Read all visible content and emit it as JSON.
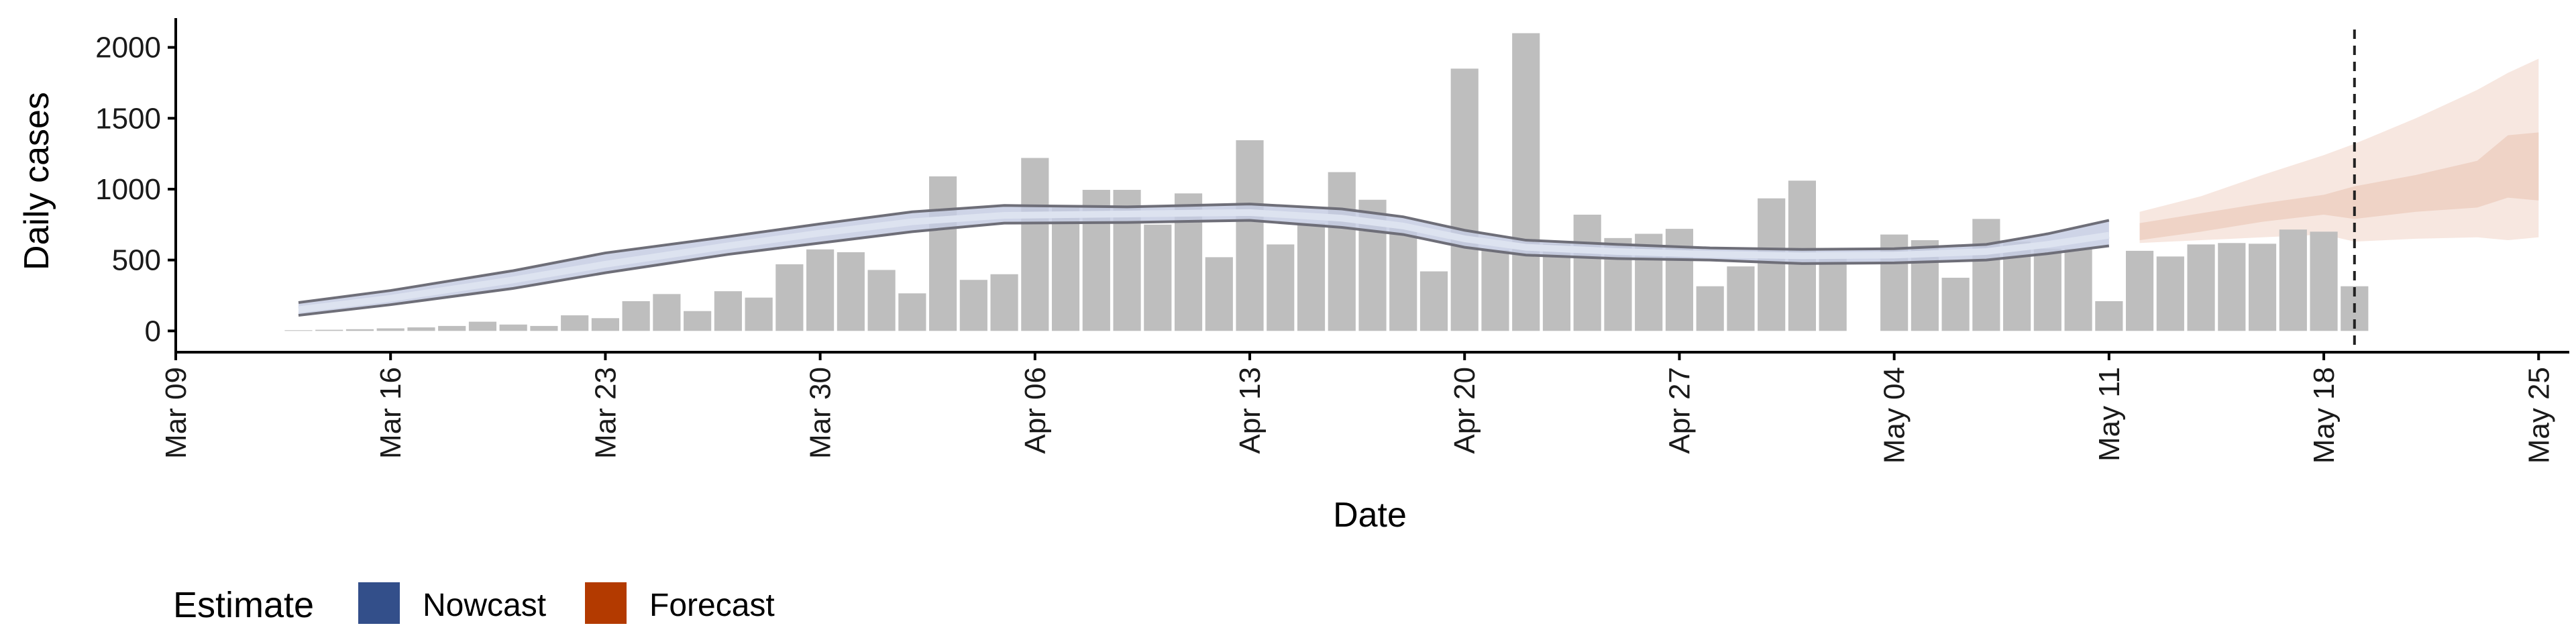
{
  "chart_data": {
    "type": "bar",
    "xlabel": "Date",
    "ylabel": "Daily cases",
    "ylim": [
      -150,
      2230
    ],
    "yticks": [
      0,
      500,
      1000,
      1500,
      2000
    ],
    "xlim": [
      "2020-03-09",
      "2020-05-26"
    ],
    "xticks": [
      "2020-03-09",
      "2020-03-16",
      "2020-03-23",
      "2020-03-30",
      "2020-04-06",
      "2020-04-13",
      "2020-04-20",
      "2020-04-27",
      "2020-05-04",
      "2020-05-11",
      "2020-05-18",
      "2020-05-25"
    ],
    "xtick_labels": [
      "Mar 09",
      "Mar 16",
      "Mar 23",
      "Mar 30",
      "Apr 06",
      "Apr 13",
      "Apr 20",
      "Apr 27",
      "May 04",
      "May 11",
      "May 18",
      "May 25"
    ],
    "forecast_date": "2020-05-19",
    "colors": {
      "bars": "#bebebe",
      "nowcast": "#334f8a",
      "nowcast_band": "#c5cde3",
      "nowcast_band_inner": "#dde3f0",
      "nowcast_outline": "#6e6e78",
      "forecast": "#b33a00",
      "forecast_outer": "#f7e7e0",
      "forecast_inner": "#efd3c6",
      "axis": "#000000",
      "vline": "#222222"
    },
    "series": [
      {
        "name": "Daily cases",
        "kind": "bar",
        "x": [
          "2020-03-13",
          "2020-03-14",
          "2020-03-15",
          "2020-03-16",
          "2020-03-17",
          "2020-03-18",
          "2020-03-19",
          "2020-03-20",
          "2020-03-21",
          "2020-03-22",
          "2020-03-23",
          "2020-03-24",
          "2020-03-25",
          "2020-03-26",
          "2020-03-27",
          "2020-03-28",
          "2020-03-29",
          "2020-03-30",
          "2020-03-31",
          "2020-04-01",
          "2020-04-02",
          "2020-04-03",
          "2020-04-04",
          "2020-04-05",
          "2020-04-06",
          "2020-04-07",
          "2020-04-08",
          "2020-04-09",
          "2020-04-10",
          "2020-04-11",
          "2020-04-12",
          "2020-04-13",
          "2020-04-14",
          "2020-04-15",
          "2020-04-16",
          "2020-04-17",
          "2020-04-18",
          "2020-04-19",
          "2020-04-20",
          "2020-04-21",
          "2020-04-22",
          "2020-04-23",
          "2020-04-24",
          "2020-04-25",
          "2020-04-26",
          "2020-04-27",
          "2020-04-28",
          "2020-04-29",
          "2020-04-30",
          "2020-05-01",
          "2020-05-02",
          "2020-05-03",
          "2020-05-04",
          "2020-05-05",
          "2020-05-06",
          "2020-05-07",
          "2020-05-08",
          "2020-05-09",
          "2020-05-10",
          "2020-05-11",
          "2020-05-12",
          "2020-05-13",
          "2020-05-14",
          "2020-05-15",
          "2020-05-16",
          "2020-05-17",
          "2020-05-18",
          "2020-05-19"
        ],
        "values": [
          5,
          8,
          12,
          18,
          25,
          35,
          65,
          45,
          35,
          110,
          90,
          210,
          260,
          140,
          280,
          235,
          470,
          575,
          555,
          430,
          265,
          1090,
          360,
          400,
          1220,
          870,
          995,
          995,
          750,
          970,
          520,
          1345,
          610,
          760,
          1120,
          925,
          740,
          420,
          1850,
          570,
          2100,
          615,
          820,
          655,
          685,
          720,
          315,
          455,
          935,
          1060,
          520,
          0,
          680,
          640,
          375,
          790,
          630,
          580,
          580,
          210,
          565,
          525,
          610,
          620,
          615,
          715,
          700,
          315
        ]
      },
      {
        "name": "Nowcast",
        "kind": "ribbon",
        "x": [
          "2020-03-13",
          "2020-03-16",
          "2020-03-20",
          "2020-03-23",
          "2020-03-27",
          "2020-03-30",
          "2020-04-02",
          "2020-04-05",
          "2020-04-09",
          "2020-04-13",
          "2020-04-16",
          "2020-04-18",
          "2020-04-20",
          "2020-04-22",
          "2020-04-25",
          "2020-04-28",
          "2020-05-01",
          "2020-05-04",
          "2020-05-07",
          "2020-05-09",
          "2020-05-11"
        ],
        "median": [
          150,
          230,
          360,
          470,
          600,
          690,
          770,
          815,
          825,
          835,
          795,
          740,
          650,
          590,
          560,
          540,
          530,
          535,
          560,
          610,
          675
        ],
        "lower": [
          110,
          185,
          300,
          410,
          540,
          620,
          700,
          760,
          765,
          780,
          730,
          680,
          590,
          535,
          510,
          500,
          475,
          480,
          500,
          545,
          600
        ],
        "upper": [
          200,
          285,
          425,
          550,
          665,
          755,
          840,
          885,
          875,
          895,
          860,
          805,
          710,
          640,
          610,
          585,
          575,
          580,
          610,
          685,
          780
        ]
      },
      {
        "name": "Forecast",
        "kind": "ribbon",
        "x": [
          "2020-05-12",
          "2020-05-14",
          "2020-05-16",
          "2020-05-18",
          "2020-05-19",
          "2020-05-21",
          "2020-05-23",
          "2020-05-24",
          "2020-05-25"
        ],
        "outer_lower": [
          620,
          640,
          660,
          680,
          630,
          650,
          660,
          640,
          660
        ],
        "outer_upper": [
          840,
          950,
          1100,
          1240,
          1320,
          1500,
          1700,
          1820,
          1920
        ],
        "inner_lower": [
          640,
          700,
          770,
          820,
          790,
          840,
          870,
          940,
          920
        ],
        "inner_upper": [
          760,
          830,
          900,
          960,
          1020,
          1100,
          1200,
          1380,
          1400
        ]
      }
    ],
    "legend": {
      "title": "Estimate",
      "position": "bottom-left",
      "items": [
        {
          "label": "Nowcast",
          "color": "#334f8a"
        },
        {
          "label": "Forecast",
          "color": "#b33a00"
        }
      ]
    }
  }
}
